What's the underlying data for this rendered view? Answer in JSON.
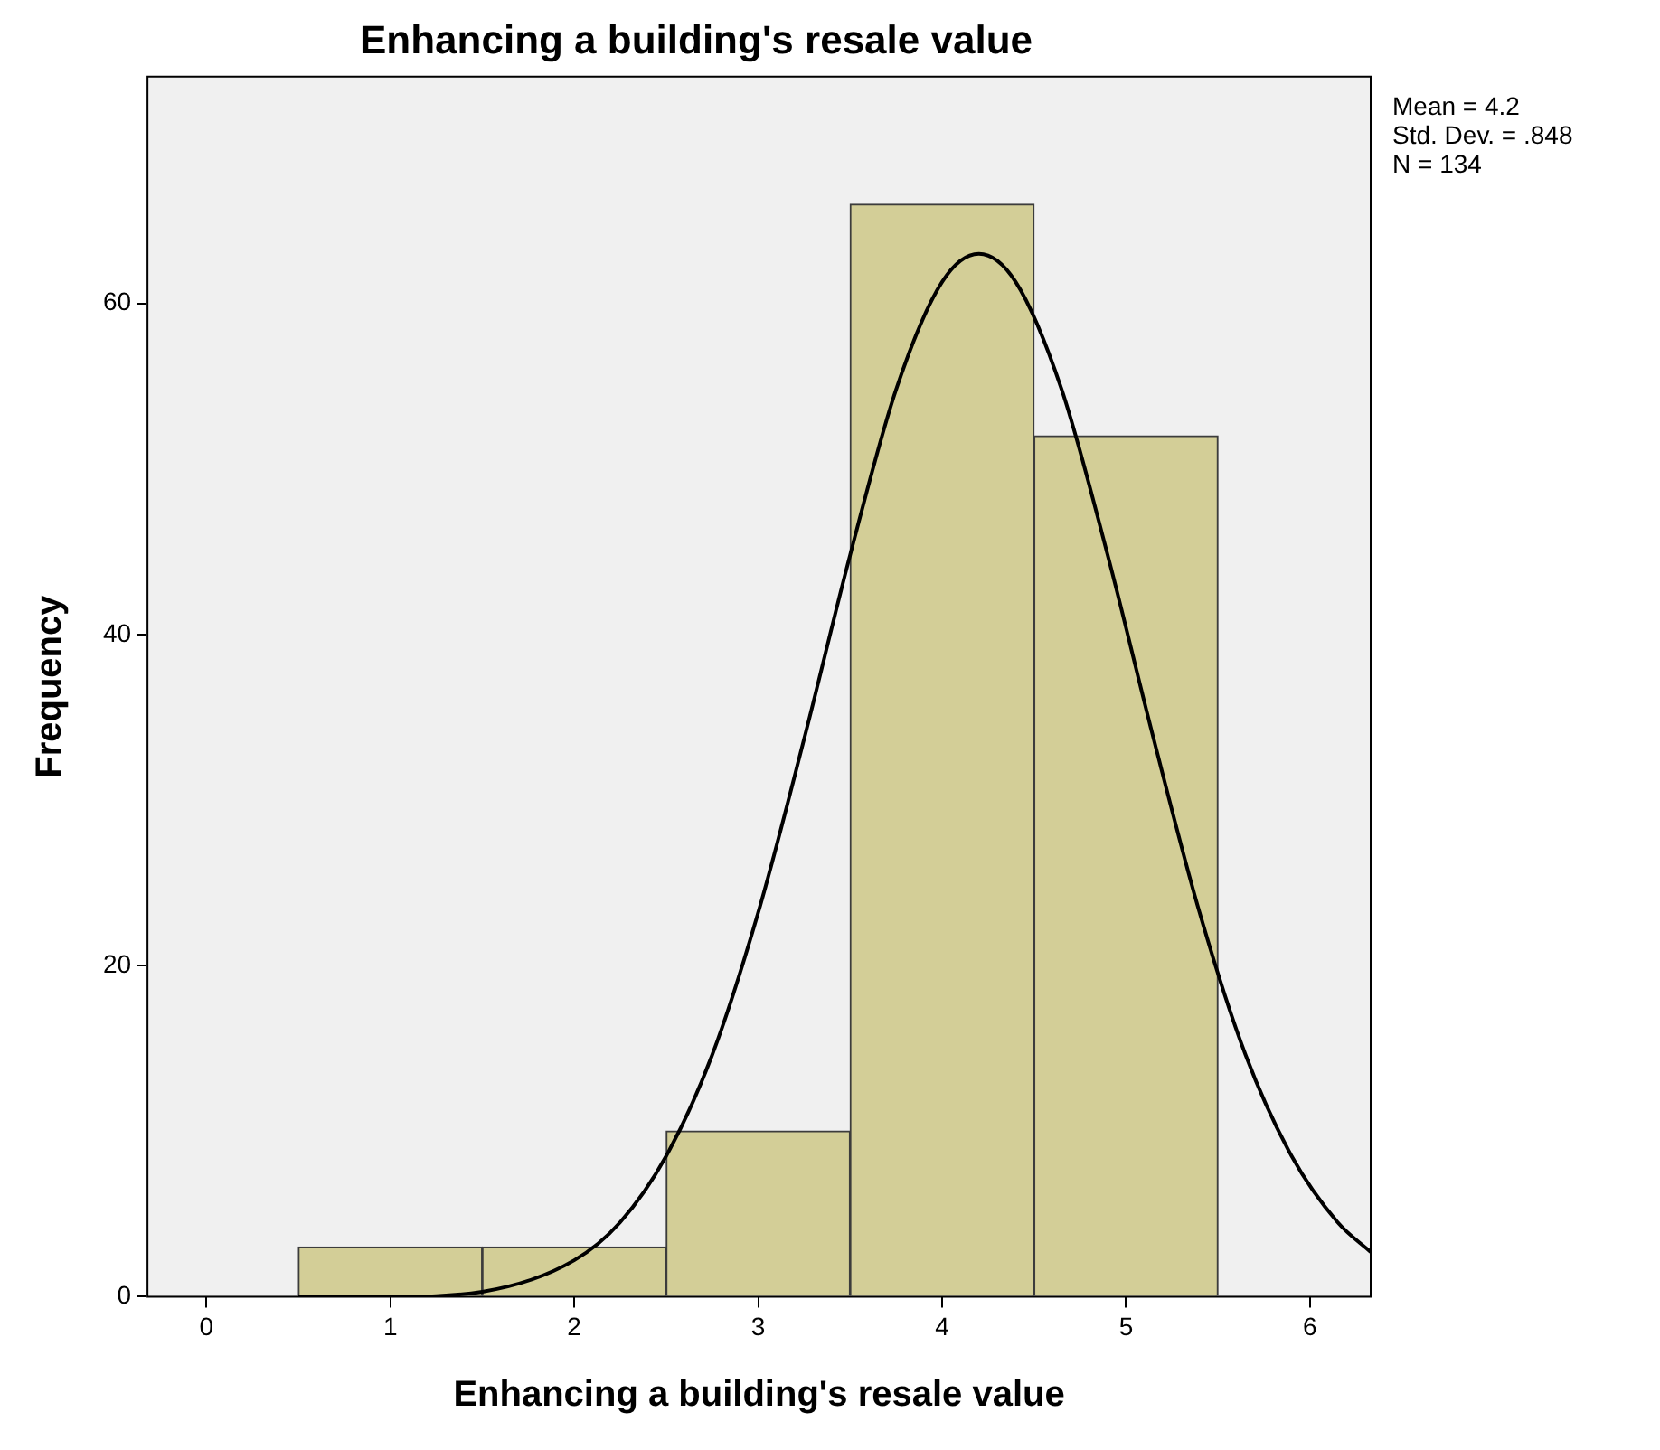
{
  "chart_data": {
    "type": "histogram",
    "title": "Enhancing a building's resale value",
    "xlabel": "Enhancing a building's resale value",
    "ylabel": "Frequency",
    "bins": [
      0.5,
      1.5,
      2.5,
      3.5,
      4.5,
      5.5
    ],
    "values": [
      3,
      3,
      10,
      66,
      52
    ],
    "color": "#d3ce97",
    "series": [
      {
        "type": "line",
        "color": "#000000",
        "x": [
          0.5,
          1,
          1.5,
          2,
          2.25,
          2.5,
          2.75,
          3,
          3.25,
          3.5,
          3.75,
          4,
          4.2,
          4.4,
          4.65,
          4.9,
          5.15,
          5.4,
          5.65,
          5.9,
          6.15,
          6.33
        ],
        "values": [
          0,
          0,
          0.3,
          2.2,
          4.5,
          8.5,
          14.6,
          23.2,
          33.7,
          44.8,
          54.8,
          61.3,
          63,
          61.3,
          54.8,
          44.8,
          33.7,
          23.2,
          14.6,
          8.5,
          4.5,
          2.7
        ]
      }
    ],
    "xlim": [
      -0.32,
      6.33
    ],
    "xticks": [
      0,
      1,
      2,
      3,
      4,
      5,
      6
    ],
    "ylim": [
      0,
      73.7
    ],
    "yticks": [
      0,
      20,
      40,
      60
    ],
    "annotations": [
      "Mean = 4.2",
      "Std. Dev. = .848",
      "N = 134"
    ],
    "grid": false,
    "legend": false,
    "marker": "none"
  }
}
